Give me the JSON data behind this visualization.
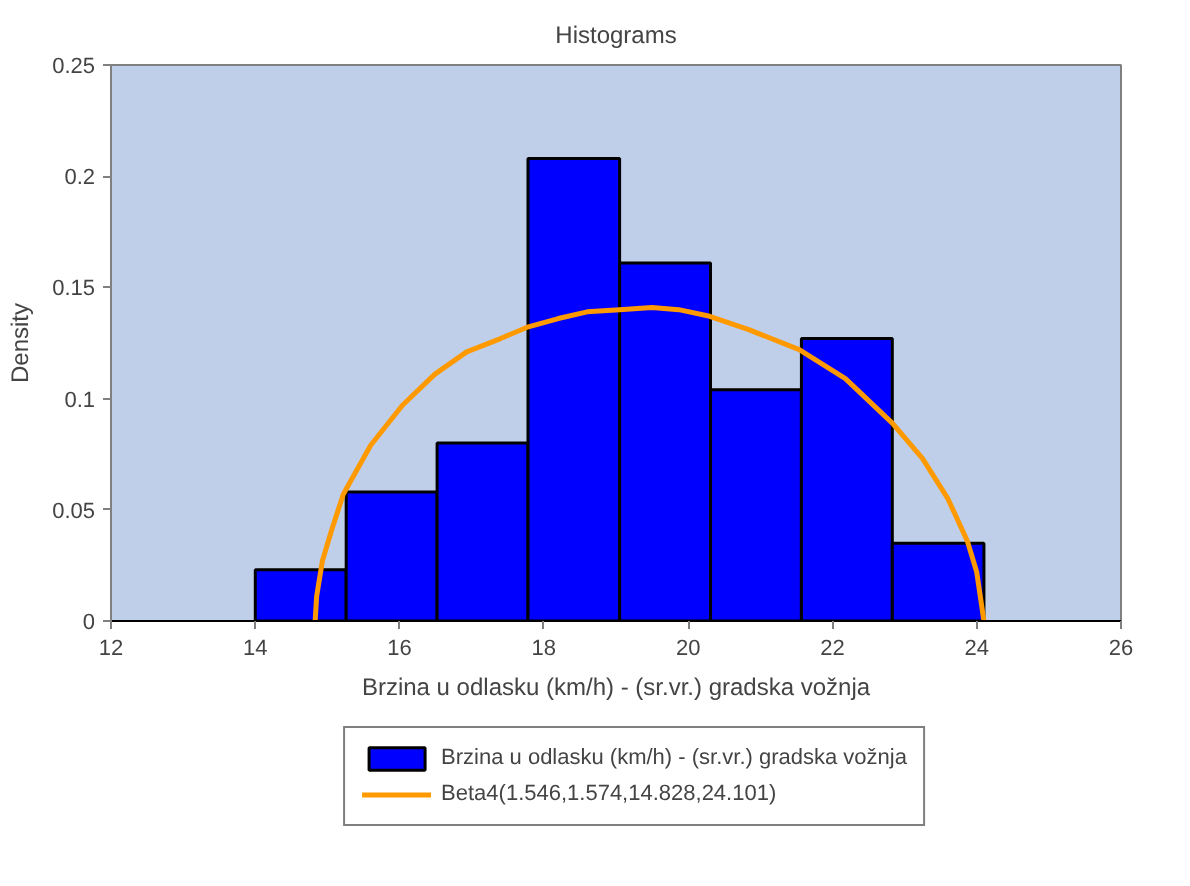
{
  "chart_data": {
    "type": "histogram",
    "title": "Histograms",
    "xlabel": "Brzina u odlasku (km/h) - (sr.vr.) gradska vožnja",
    "ylabel": "Density",
    "xlim": [
      12,
      26
    ],
    "xticks": [
      12,
      14,
      16,
      18,
      20,
      22,
      24,
      26
    ],
    "ylim": [
      0,
      0.25
    ],
    "yticks": [
      0,
      0.05,
      0.1,
      0.15,
      0.2,
      0.25
    ],
    "grid": false,
    "legend": "bottom",
    "series": [
      {
        "name": "Brzina u odlasku (km/h) - (sr.vr.) gradska vožnja",
        "color": "#0000ff",
        "bins": [
          14,
          15.26,
          16.52,
          17.78,
          19.05,
          20.31,
          21.57,
          22.83,
          24.1
        ],
        "values": [
          0.023,
          0.058,
          0.08,
          0.208,
          0.161,
          0.104,
          0.127,
          0.035
        ]
      },
      {
        "name": "Beta4(1.546,1.574,14.828,24.101)",
        "type": "line",
        "color": "#ff9900",
        "x": [
          14.83,
          14.85,
          14.93,
          15.05,
          15.22,
          15.6,
          16.04,
          16.49,
          16.93,
          17.4,
          17.76,
          18.2,
          18.6,
          19.05,
          19.5,
          19.87,
          20.3,
          20.84,
          21.54,
          22.18,
          22.83,
          23.25,
          23.6,
          23.87,
          24.0,
          24.1
        ],
        "values": [
          0,
          0.011,
          0.027,
          0.04,
          0.057,
          0.079,
          0.097,
          0.111,
          0.121,
          0.127,
          0.132,
          0.136,
          0.139,
          0.14,
          0.141,
          0.14,
          0.137,
          0.131,
          0.122,
          0.109,
          0.089,
          0.073,
          0.055,
          0.036,
          0.022,
          0
        ]
      }
    ]
  }
}
